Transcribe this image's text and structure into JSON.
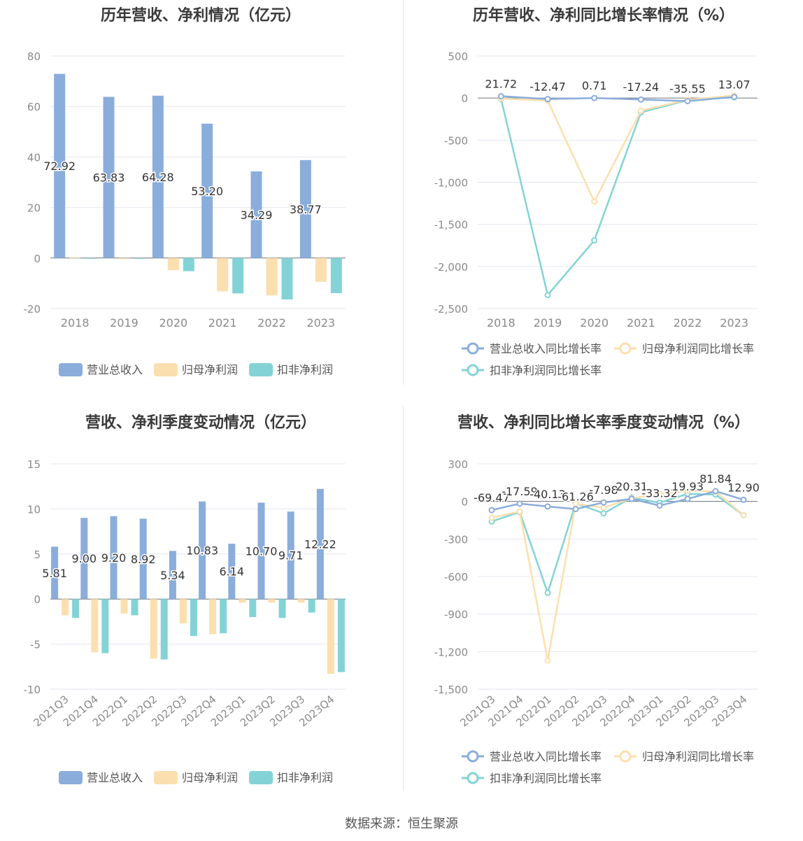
{
  "colors": {
    "revenue": "#8aaddb",
    "net_profit": "#fcdfae",
    "deducted_profit": "#83d3d6",
    "grid": "#e4e7f0",
    "axis_text": "#8a8a8a",
    "label_text": "#333333",
    "zero_line": "#6e7079"
  },
  "source": "数据来源：恒生聚源",
  "chart_data": [
    {
      "type": "bar",
      "title": "历年营收、净利情况（亿元）",
      "categories": [
        "2018",
        "2019",
        "2020",
        "2021",
        "2022",
        "2023"
      ],
      "ylim": [
        -20,
        80
      ],
      "yticks": [
        -20,
        0,
        20,
        40,
        60,
        80
      ],
      "grid": true,
      "legend_position": "bottom",
      "series": [
        {
          "name": "营业总收入",
          "values": [
            72.92,
            63.83,
            64.28,
            53.2,
            34.29,
            38.77
          ],
          "labels": [
            "72.92",
            "63.83",
            "64.28",
            "53.20",
            "34.29",
            "38.77"
          ]
        },
        {
          "name": "归母净利润",
          "values": [
            0.3,
            -0.4,
            -4.8,
            -13.2,
            -14.8,
            -9.4
          ]
        },
        {
          "name": "扣非净利润",
          "values": [
            -0.1,
            -0.3,
            -5.2,
            -14.0,
            -16.4,
            -13.9
          ]
        }
      ]
    },
    {
      "type": "line",
      "title": "历年营收、净利同比增长率情况（%）",
      "categories": [
        "2018",
        "2019",
        "2020",
        "2021",
        "2022",
        "2023"
      ],
      "ylim": [
        -2500,
        500
      ],
      "yticks": [
        -2500,
        -2000,
        -1500,
        -1000,
        -500,
        0,
        500
      ],
      "ytick_labels": [
        "-2,500",
        "-2,000",
        "-1,500",
        "-1,000",
        "-500",
        "0",
        "500"
      ],
      "grid": true,
      "legend_position": "bottom",
      "series": [
        {
          "name": "营业总收入同比增长率",
          "values": [
            21.72,
            -12.47,
            0.71,
            -17.24,
            -35.55,
            13.07
          ],
          "labels": [
            "21.72",
            "-12.47",
            "0.71",
            "-17.24",
            "-35.55",
            "13.07"
          ]
        },
        {
          "name": "归母净利润同比增长率",
          "values": [
            -5,
            -30,
            -1230,
            -150,
            -20,
            30
          ]
        },
        {
          "name": "扣非净利润同比增长率",
          "values": [
            -10,
            -2340,
            -1690,
            -170,
            -25,
            10
          ]
        }
      ]
    },
    {
      "type": "bar",
      "title": "营收、净利季度变动情况（亿元）",
      "categories": [
        "2021Q3",
        "2021Q4",
        "2022Q1",
        "2022Q2",
        "2022Q3",
        "2022Q4",
        "2023Q1",
        "2023Q2",
        "2023Q3",
        "2023Q4"
      ],
      "ylim": [
        -10,
        15
      ],
      "yticks": [
        -10,
        -5,
        0,
        5,
        10,
        15
      ],
      "grid": true,
      "legend_position": "bottom",
      "series": [
        {
          "name": "营业总收入",
          "values": [
            5.81,
            9.0,
            9.2,
            8.92,
            5.34,
            10.83,
            6.14,
            10.7,
            9.71,
            12.22
          ],
          "labels": [
            "5.81",
            "9.00",
            "9.20",
            "8.92",
            "5.34",
            "10.83",
            "6.14",
            "10.70",
            "9.71",
            "12.22"
          ]
        },
        {
          "name": "归母净利润",
          "values": [
            -1.8,
            -5.9,
            -1.6,
            -6.6,
            -2.7,
            -3.9,
            -0.4,
            -0.4,
            -0.4,
            -8.3
          ]
        },
        {
          "name": "扣非净利润",
          "values": [
            -2.1,
            -6.0,
            -1.8,
            -6.7,
            -4.1,
            -3.8,
            -2.0,
            -2.1,
            -1.5,
            -8.1
          ]
        }
      ]
    },
    {
      "type": "line",
      "title": "营收、净利同比增长率季度变动情况（%）",
      "categories": [
        "2021Q3",
        "2021Q4",
        "2022Q1",
        "2022Q2",
        "2022Q3",
        "2022Q4",
        "2023Q1",
        "2023Q2",
        "2023Q3",
        "2023Q4"
      ],
      "ylim": [
        -1500,
        300
      ],
      "yticks": [
        -1500,
        -1200,
        -900,
        -600,
        -300,
        0,
        300
      ],
      "ytick_labels": [
        "-1,500",
        "-1,200",
        "-900",
        "-600",
        "-300",
        "0",
        "300"
      ],
      "grid": true,
      "legend_position": "bottom",
      "series": [
        {
          "name": "营业总收入同比增长率",
          "values": [
            -69.47,
            -17.59,
            -40.13,
            -61.26,
            -7.98,
            20.31,
            -33.32,
            19.93,
            81.84,
            12.9
          ],
          "labels": [
            "-69.47",
            "-17.59",
            "-40.13",
            "-61.26",
            "-7.98",
            "20.31",
            "-33.32",
            "19.93",
            "81.84",
            "12.90"
          ]
        },
        {
          "name": "归母净利润同比增长率",
          "values": [
            -130,
            -80,
            -1270,
            -20,
            -50,
            25,
            60,
            85,
            80,
            -110
          ]
        },
        {
          "name": "扣非净利润同比增长率",
          "values": [
            -160,
            -85,
            -730,
            -15,
            -95,
            30,
            -10,
            60,
            55,
            -110
          ]
        }
      ]
    }
  ]
}
